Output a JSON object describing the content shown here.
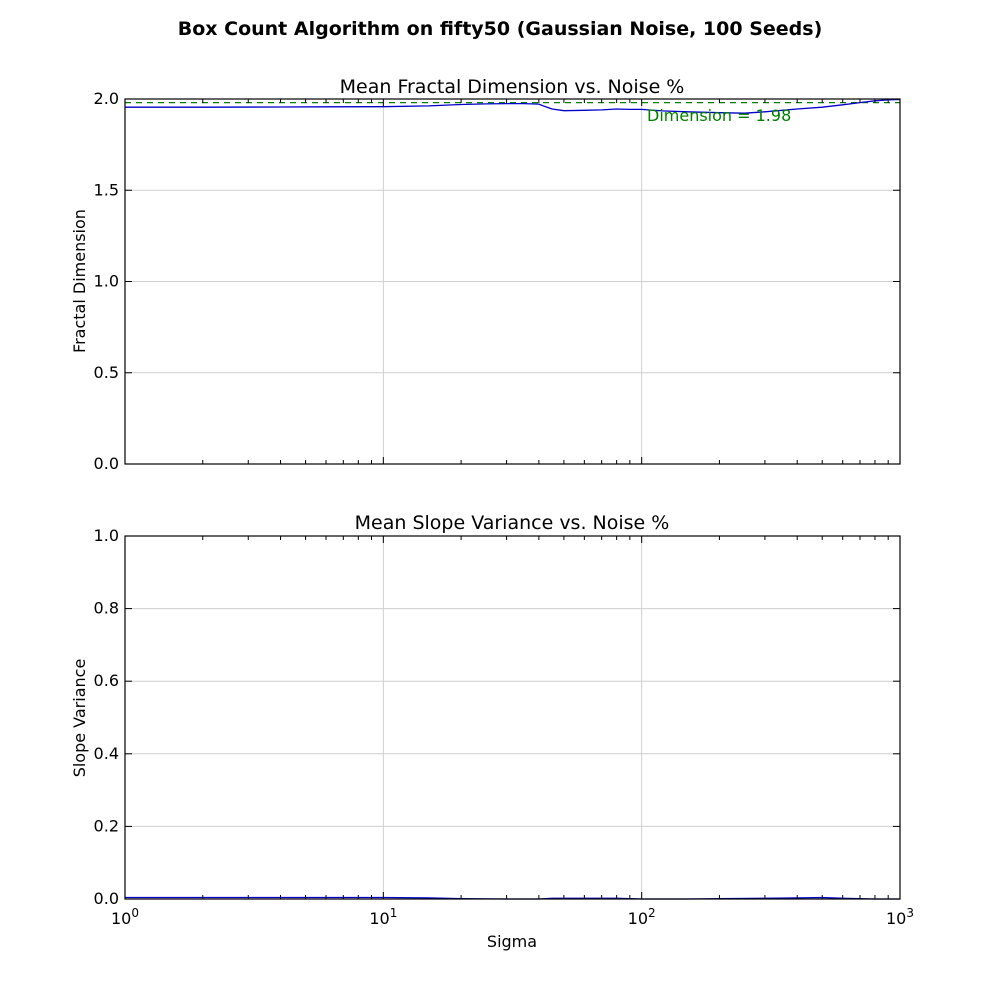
{
  "figure": {
    "title": "Box Count Algorithm on fifty50 (Gaussian Noise, 100 Seeds)"
  },
  "colors": {
    "series": "#0000cc",
    "reference": "#008000",
    "grid": "#cfcfcf"
  },
  "chart_data": [
    {
      "type": "line",
      "title": "Mean Fractal Dimension vs. Noise %",
      "xlabel": "",
      "ylabel": "Fractal Dimension",
      "xscale": "log",
      "xlim": [
        1,
        1000
      ],
      "ylim": [
        0.0,
        2.0
      ],
      "xticks": [
        1,
        10,
        100,
        1000
      ],
      "yticks": [
        0.0,
        0.5,
        1.0,
        1.5,
        2.0
      ],
      "ytick_labels": [
        "0.0",
        "0.5",
        "1.0",
        "1.5",
        "2.0"
      ],
      "grid": true,
      "series": [
        {
          "x": [
            1,
            2,
            4,
            6,
            10,
            15,
            18,
            20,
            25,
            30,
            35,
            40,
            42,
            45,
            50,
            60,
            70,
            80,
            90,
            100,
            120,
            150,
            200,
            250,
            300,
            400,
            500,
            600,
            700,
            800,
            900,
            1000
          ],
          "values": [
            1.955,
            1.955,
            1.956,
            1.957,
            1.958,
            1.962,
            1.967,
            1.97,
            1.973,
            1.975,
            1.975,
            1.972,
            1.96,
            1.945,
            1.936,
            1.938,
            1.94,
            1.945,
            1.943,
            1.943,
            1.935,
            1.93,
            1.925,
            1.922,
            1.93,
            1.945,
            1.955,
            1.968,
            1.98,
            1.99,
            1.995,
            1.997
          ]
        }
      ],
      "reference_line": {
        "y": 1.98,
        "label": "Dimension = 1.98"
      }
    },
    {
      "type": "line",
      "title": "Mean Slope Variance vs. Noise %",
      "xlabel": "Sigma",
      "ylabel": "Slope Variance",
      "xscale": "log",
      "xlim": [
        1,
        1000
      ],
      "ylim": [
        0.0,
        1.0
      ],
      "xticks": [
        1,
        10,
        100,
        1000
      ],
      "xtick_labels": [
        {
          "base": "10",
          "exp": "0"
        },
        {
          "base": "10",
          "exp": "1"
        },
        {
          "base": "10",
          "exp": "2"
        },
        {
          "base": "10",
          "exp": "3"
        }
      ],
      "yticks": [
        0.0,
        0.2,
        0.4,
        0.6,
        0.8,
        1.0
      ],
      "ytick_labels": [
        "0.0",
        "0.2",
        "0.4",
        "0.6",
        "0.8",
        "1.0"
      ],
      "grid": true,
      "series": [
        {
          "x": [
            1,
            2,
            5,
            10,
            15,
            20,
            30,
            40,
            45,
            60,
            80,
            90,
            100,
            150,
            200,
            300,
            400,
            500,
            600,
            700,
            800,
            1000
          ],
          "values": [
            0.004,
            0.004,
            0.004,
            0.004,
            0.003,
            0.001,
            0.0,
            0.0,
            0.002,
            0.002,
            0.002,
            0.001,
            0.0,
            0.0,
            0.001,
            0.002,
            0.003,
            0.004,
            0.002,
            0.001,
            0.0,
            0.0
          ]
        }
      ]
    }
  ]
}
